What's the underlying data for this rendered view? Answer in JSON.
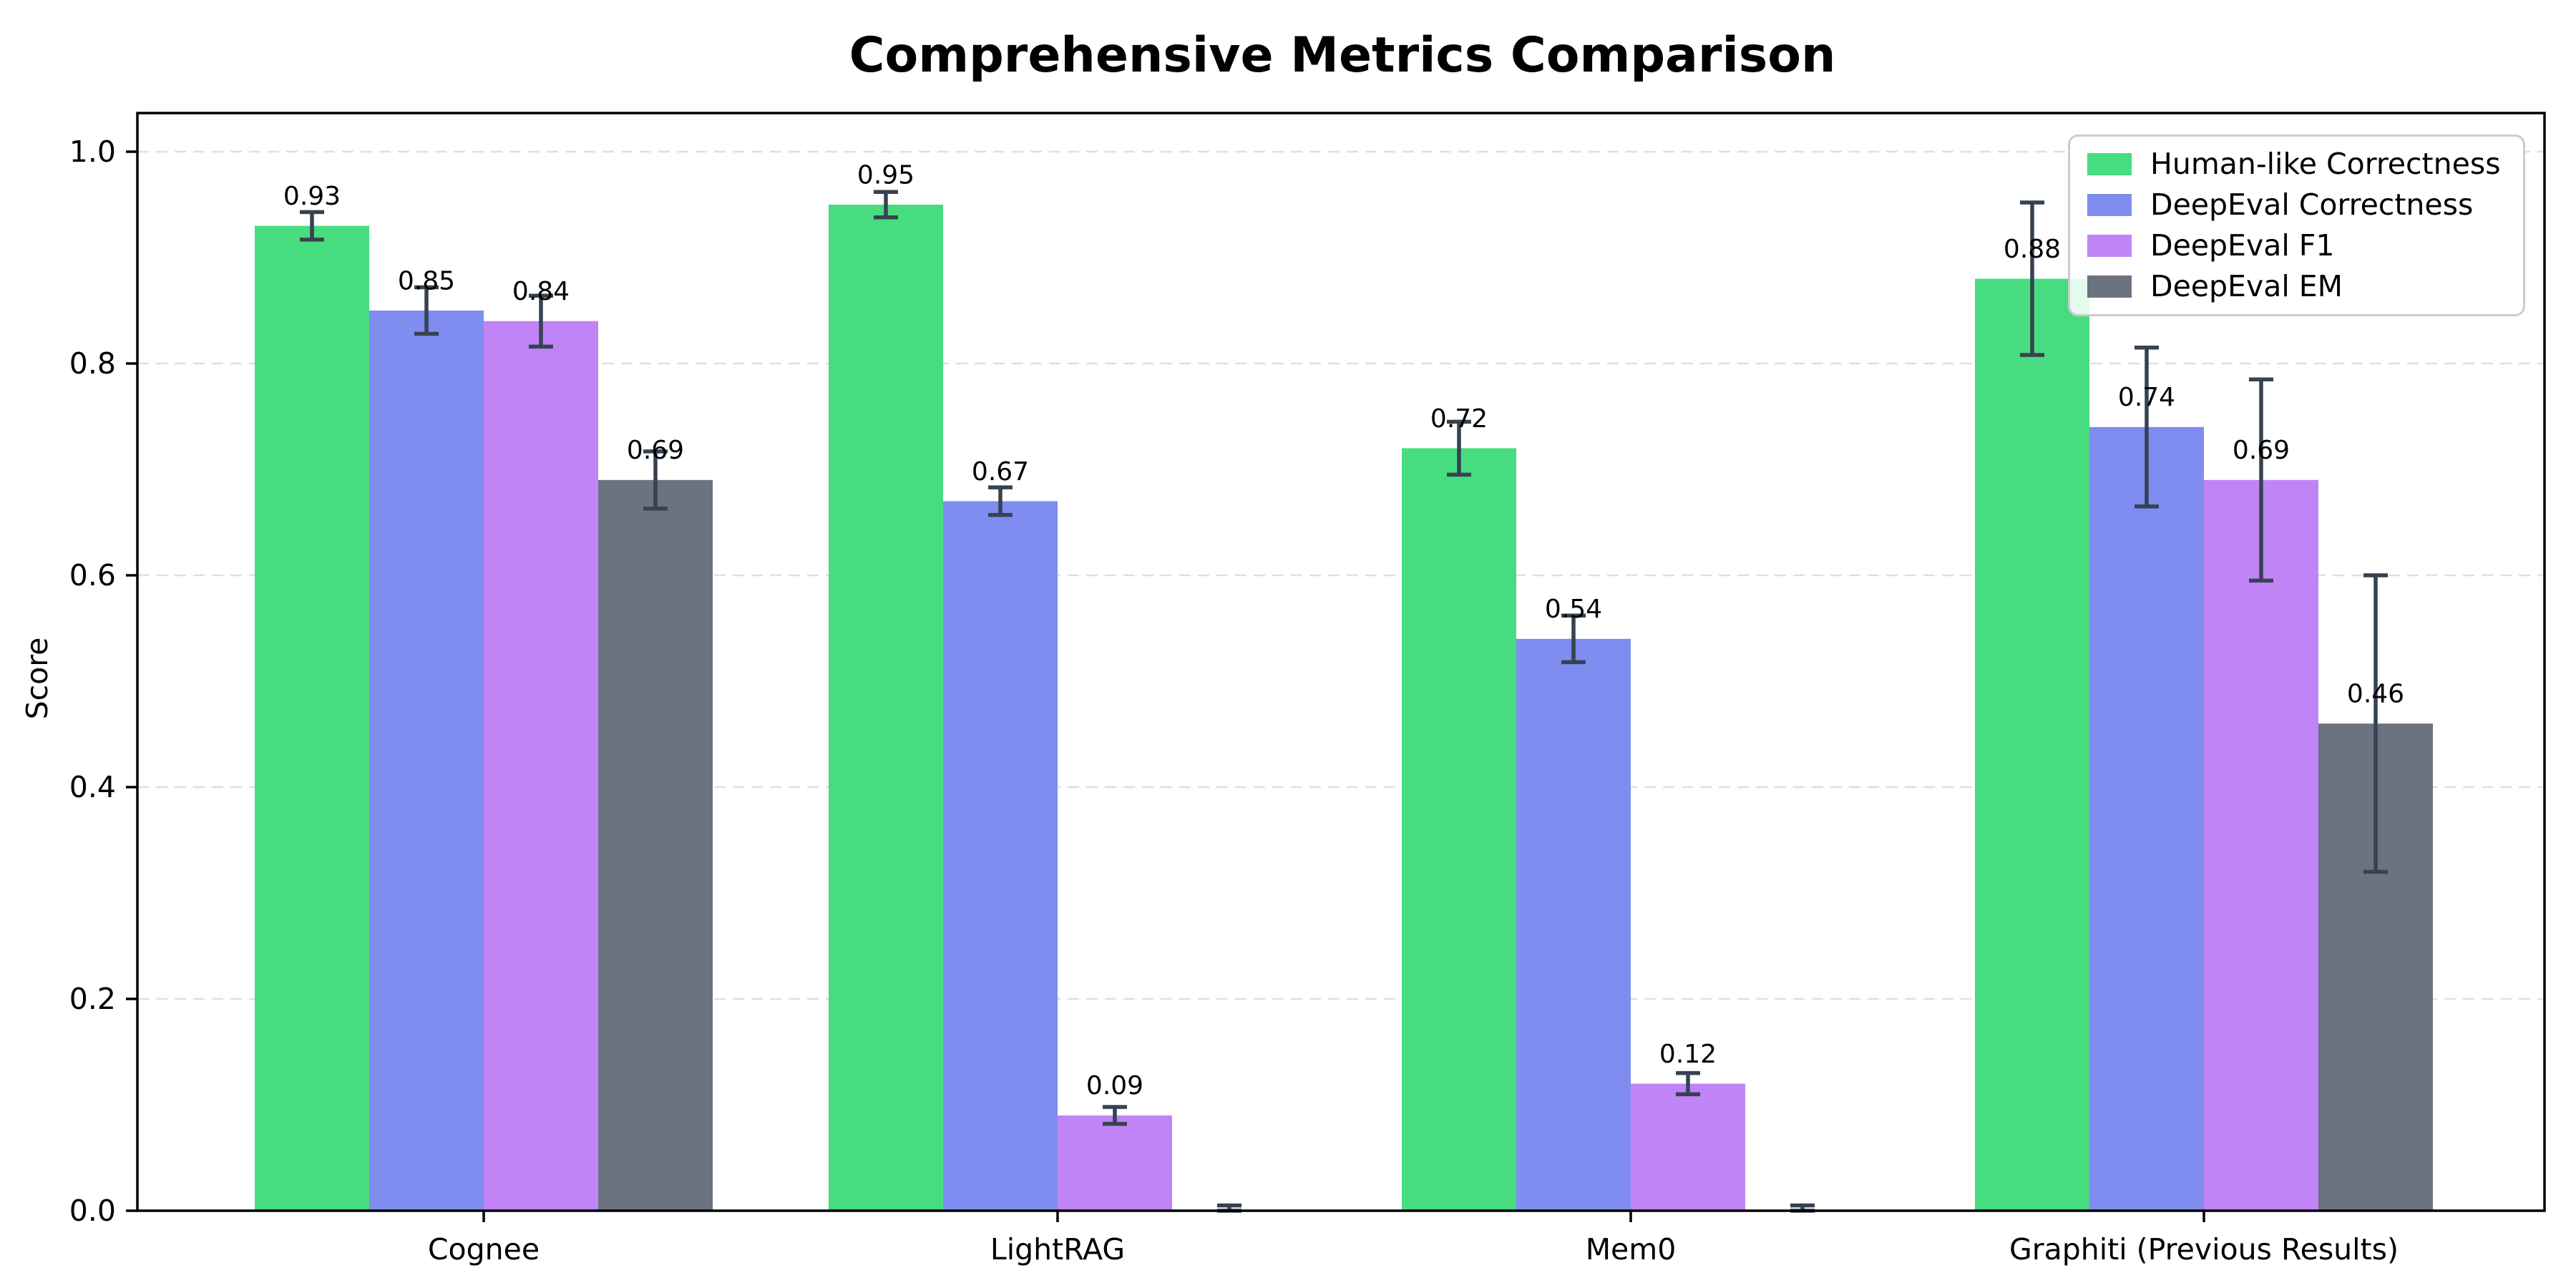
{
  "chart_data": {
    "type": "bar",
    "title": "Comprehensive Metrics Comparison",
    "ylabel": "Score",
    "xlabel": "",
    "categories": [
      "Cognee",
      "LightRAG",
      "Mem0",
      "Graphiti (Previous Results)"
    ],
    "series": [
      {
        "name": "Human-like Correctness",
        "color": "#48dc80",
        "values": [
          0.93,
          0.95,
          0.72,
          0.88
        ],
        "errors": [
          0.013,
          0.012,
          0.025,
          0.072
        ]
      },
      {
        "name": "DeepEval Correctness",
        "color": "#7f8cf0",
        "values": [
          0.85,
          0.67,
          0.54,
          0.74
        ],
        "errors": [
          0.022,
          0.013,
          0.022,
          0.075
        ]
      },
      {
        "name": "DeepEval F1",
        "color": "#c084f6",
        "values": [
          0.84,
          0.09,
          0.12,
          0.69
        ],
        "errors": [
          0.024,
          0.008,
          0.01,
          0.095
        ]
      },
      {
        "name": "DeepEval EM",
        "color": "#6b7280",
        "values": [
          0.69,
          0.0,
          0.0,
          0.46
        ],
        "errors": [
          0.027,
          0.005,
          0.005,
          0.14
        ]
      }
    ],
    "value_labels": [
      [
        "0.93",
        "0.95",
        "0.72",
        "0.88"
      ],
      [
        "0.85",
        "0.67",
        "0.54",
        "0.74"
      ],
      [
        "0.84",
        "0.09",
        "0.12",
        "0.69"
      ],
      [
        "0.69",
        "",
        "",
        "0.46"
      ]
    ],
    "y_ticks": [
      "0.0",
      "0.2",
      "0.4",
      "0.6",
      "0.8",
      "1.0"
    ],
    "ylim": [
      0.0,
      1.04
    ],
    "grid": {
      "visible": true,
      "axis": "y",
      "style": "dashed",
      "color": "#e0e0e0"
    },
    "error_bar_color": "#364251",
    "axis_color": "#000000",
    "text_color": "#000000",
    "legend": {
      "position": "upper right",
      "labels": [
        "Human-like Correctness",
        "DeepEval Correctness",
        "DeepEval F1",
        "DeepEval EM"
      ]
    }
  }
}
